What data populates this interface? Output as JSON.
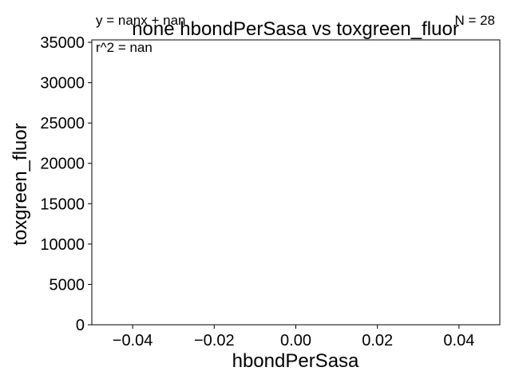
{
  "chart_data": {
    "type": "scatter",
    "title": "none hbondPerSasa vs toxgreen_fluor",
    "xlabel": "hbondPerSasa",
    "ylabel": "toxgreen_fluor",
    "xlim": [
      -0.05,
      0.05
    ],
    "ylim": [
      0,
      35300
    ],
    "xticks": [
      -0.04,
      -0.02,
      0.0,
      0.02,
      0.04
    ],
    "xtick_labels": [
      "−0.04",
      "−0.02",
      "0.00",
      "0.02",
      "0.04"
    ],
    "yticks": [
      0,
      5000,
      10000,
      15000,
      20000,
      25000,
      30000,
      35000
    ],
    "ytick_labels": [
      "0",
      "5000",
      "10000",
      "15000",
      "20000",
      "25000",
      "30000",
      "35000"
    ],
    "grid": false,
    "series": [
      {
        "x": [],
        "y": []
      }
    ],
    "annotations": {
      "fit_equation": "y = nanx + nan",
      "r_squared": "r^2 = nan",
      "count": "N = 28"
    }
  },
  "colors": {
    "axis": "#000000",
    "background": "#ffffff"
  }
}
